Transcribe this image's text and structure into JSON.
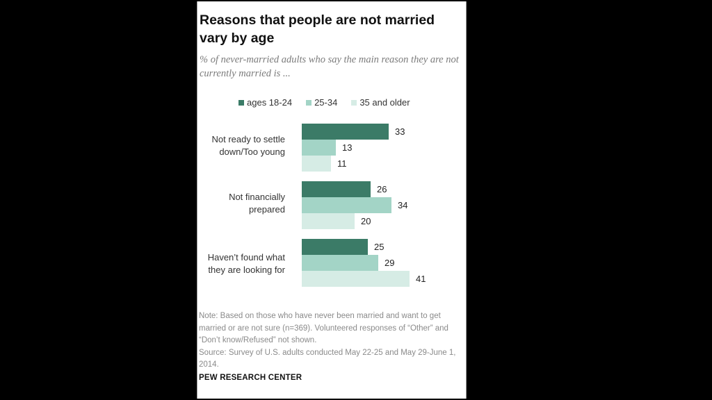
{
  "title": "Reasons that people are not married vary by age",
  "subtitle": "% of never-married adults who say the main reason they are not currently married is ...",
  "note": "Note: Based on those who have never been married and want to get married or are not sure (n=369). Volunteered responses of “Other” and “Don’t know/Refused” not shown.",
  "source": "Source: Survey of U.S. adults conducted May 22-25 and May 29-June 1, 2014.",
  "brand": "PEW RESEARCH CENTER",
  "colors": {
    "ages_18_24": "#3b7b67",
    "ages_25_34": "#a3d4c6",
    "ages_35_plus": "#d6ece5"
  },
  "chart_data": {
    "type": "bar",
    "orientation": "horizontal",
    "categories": [
      "Not ready to settle down/Too young",
      "Not financially prepared",
      "Haven’t found what they are looking for"
    ],
    "series": [
      {
        "name": "ages 18-24",
        "values": [
          33,
          26,
          25
        ]
      },
      {
        "name": "25-34",
        "values": [
          13,
          34,
          29
        ]
      },
      {
        "name": "35 and older",
        "values": [
          11,
          20,
          41
        ]
      }
    ],
    "legend": "top",
    "grid": false
  }
}
